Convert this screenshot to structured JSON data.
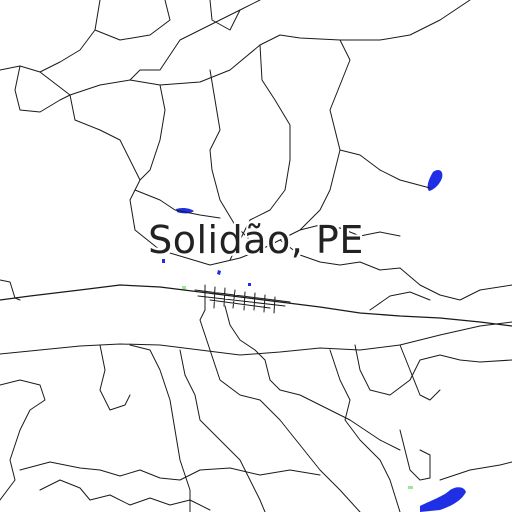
{
  "map": {
    "place_label": "Solidão, PE",
    "colors": {
      "background": "#ffffff",
      "road": "#1a1a1a",
      "water": "#1f2fe6",
      "vegetation": "#9be89b"
    }
  }
}
